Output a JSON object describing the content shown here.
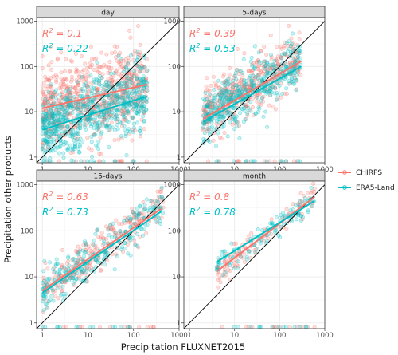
{
  "chart_data": {
    "type": "scatter",
    "xlabel": "Precipitation FLUXNET2015",
    "ylabel": "Precipitation other products",
    "x_scale": "log10",
    "y_scale": "log10",
    "xlim": [
      0.75,
      1000
    ],
    "ylim": [
      0.75,
      1200
    ],
    "x_ticks": [
      1,
      10,
      100,
      1000
    ],
    "x_tick_labels": [
      "1",
      "10",
      "100",
      "1000"
    ],
    "y_ticks": [
      1,
      10,
      100,
      1000
    ],
    "y_tick_labels": [
      "1",
      "10",
      "100",
      "1000"
    ],
    "grid": true,
    "reference_line": "1:1",
    "legend_placement": "right",
    "series": [
      {
        "name": "CHIRPS",
        "color": "#F8766D"
      },
      {
        "name": "ERA5-Land",
        "color": "#00BFC4"
      }
    ],
    "panels": [
      {
        "strip": "day",
        "r2_labels": [
          {
            "prefix": "R",
            "sup": "2",
            "value": " = 0.1"
          },
          {
            "prefix": "R",
            "sup": "2",
            "value": " = 0.22"
          }
        ],
        "r2_values": {
          "CHIRPS": 0.1,
          "ERA5-Land": 0.22
        },
        "fit_lines": {
          "CHIRPS": [
            [
              1,
              12
            ],
            [
              200,
              40
            ]
          ],
          "ERA5-Land": [
            [
              1,
              4
            ],
            [
              200,
              22
            ]
          ]
        },
        "point_clouds": {
          "CHIRPS": {
            "x_range": [
              1,
              200
            ],
            "center_at_x1": 10,
            "center_at_x200": 45,
            "spread_decades": 0.45,
            "count": 700
          },
          "ERA5-Land": {
            "x_range": [
              1,
              200
            ],
            "center_at_x1": 4,
            "center_at_x200": 25,
            "spread_decades": 0.4,
            "count": 700
          }
        }
      },
      {
        "strip": "5-days",
        "r2_labels": [
          {
            "prefix": "R",
            "sup": "2",
            "value": " = 0.39"
          },
          {
            "prefix": "R",
            "sup": "2",
            "value": " = 0.53"
          }
        ],
        "r2_values": {
          "CHIRPS": 0.39,
          "ERA5-Land": 0.53
        },
        "fit_lines": {
          "CHIRPS": [
            [
              2,
              7
            ],
            [
              300,
              130
            ]
          ],
          "ERA5-Land": [
            [
              2,
              6
            ],
            [
              300,
              100
            ]
          ]
        },
        "point_clouds": {
          "CHIRPS": {
            "x_range": [
              2,
              300
            ],
            "center_at_x1": 6,
            "center_at_x200": 120,
            "spread_decades": 0.3,
            "count": 450
          },
          "ERA5-Land": {
            "x_range": [
              2,
              300
            ],
            "center_at_x1": 5,
            "center_at_x200": 95,
            "spread_decades": 0.3,
            "count": 450
          }
        }
      },
      {
        "strip": "15-days",
        "r2_labels": [
          {
            "prefix": "R",
            "sup": "2",
            "value": " = 0.63"
          },
          {
            "prefix": "R",
            "sup": "2",
            "value": " = 0.73"
          }
        ],
        "r2_values": {
          "CHIRPS": 0.63,
          "ERA5-Land": 0.73
        },
        "fit_lines": {
          "CHIRPS": [
            [
              1,
              5
            ],
            [
              400,
              300
            ]
          ],
          "ERA5-Land": [
            [
              1,
              4.5
            ],
            [
              400,
              260
            ]
          ]
        },
        "point_clouds": {
          "CHIRPS": {
            "x_range": [
              1,
              450
            ],
            "center_at_x1": 5,
            "center_at_x200": 220,
            "spread_decades": 0.22,
            "count": 260
          },
          "ERA5-Land": {
            "x_range": [
              1,
              450
            ],
            "center_at_x1": 4.5,
            "center_at_x200": 190,
            "spread_decades": 0.22,
            "count": 260
          }
        }
      },
      {
        "strip": "month",
        "r2_labels": [
          {
            "prefix": "R",
            "sup": "2",
            "value": " = 0.8"
          },
          {
            "prefix": "R",
            "sup": "2",
            "value": " = 0.78"
          }
        ],
        "r2_values": {
          "CHIRPS": 0.8,
          "ERA5-Land": 0.78
        },
        "fit_lines": {
          "CHIRPS": [
            [
              4,
              13
            ],
            [
              600,
              550
            ]
          ],
          "ERA5-Land": [
            [
              4,
              21
            ],
            [
              600,
              450
            ]
          ]
        },
        "point_clouds": {
          "CHIRPS": {
            "x_range": [
              4,
              600
            ],
            "center_at_x1": 4,
            "center_at_x200": 260,
            "spread_decades": 0.15,
            "count": 120
          },
          "ERA5-Land": {
            "x_range": [
              4,
              600
            ],
            "center_at_x1": 6,
            "center_at_x200": 230,
            "spread_decades": 0.15,
            "count": 120
          }
        }
      }
    ]
  }
}
